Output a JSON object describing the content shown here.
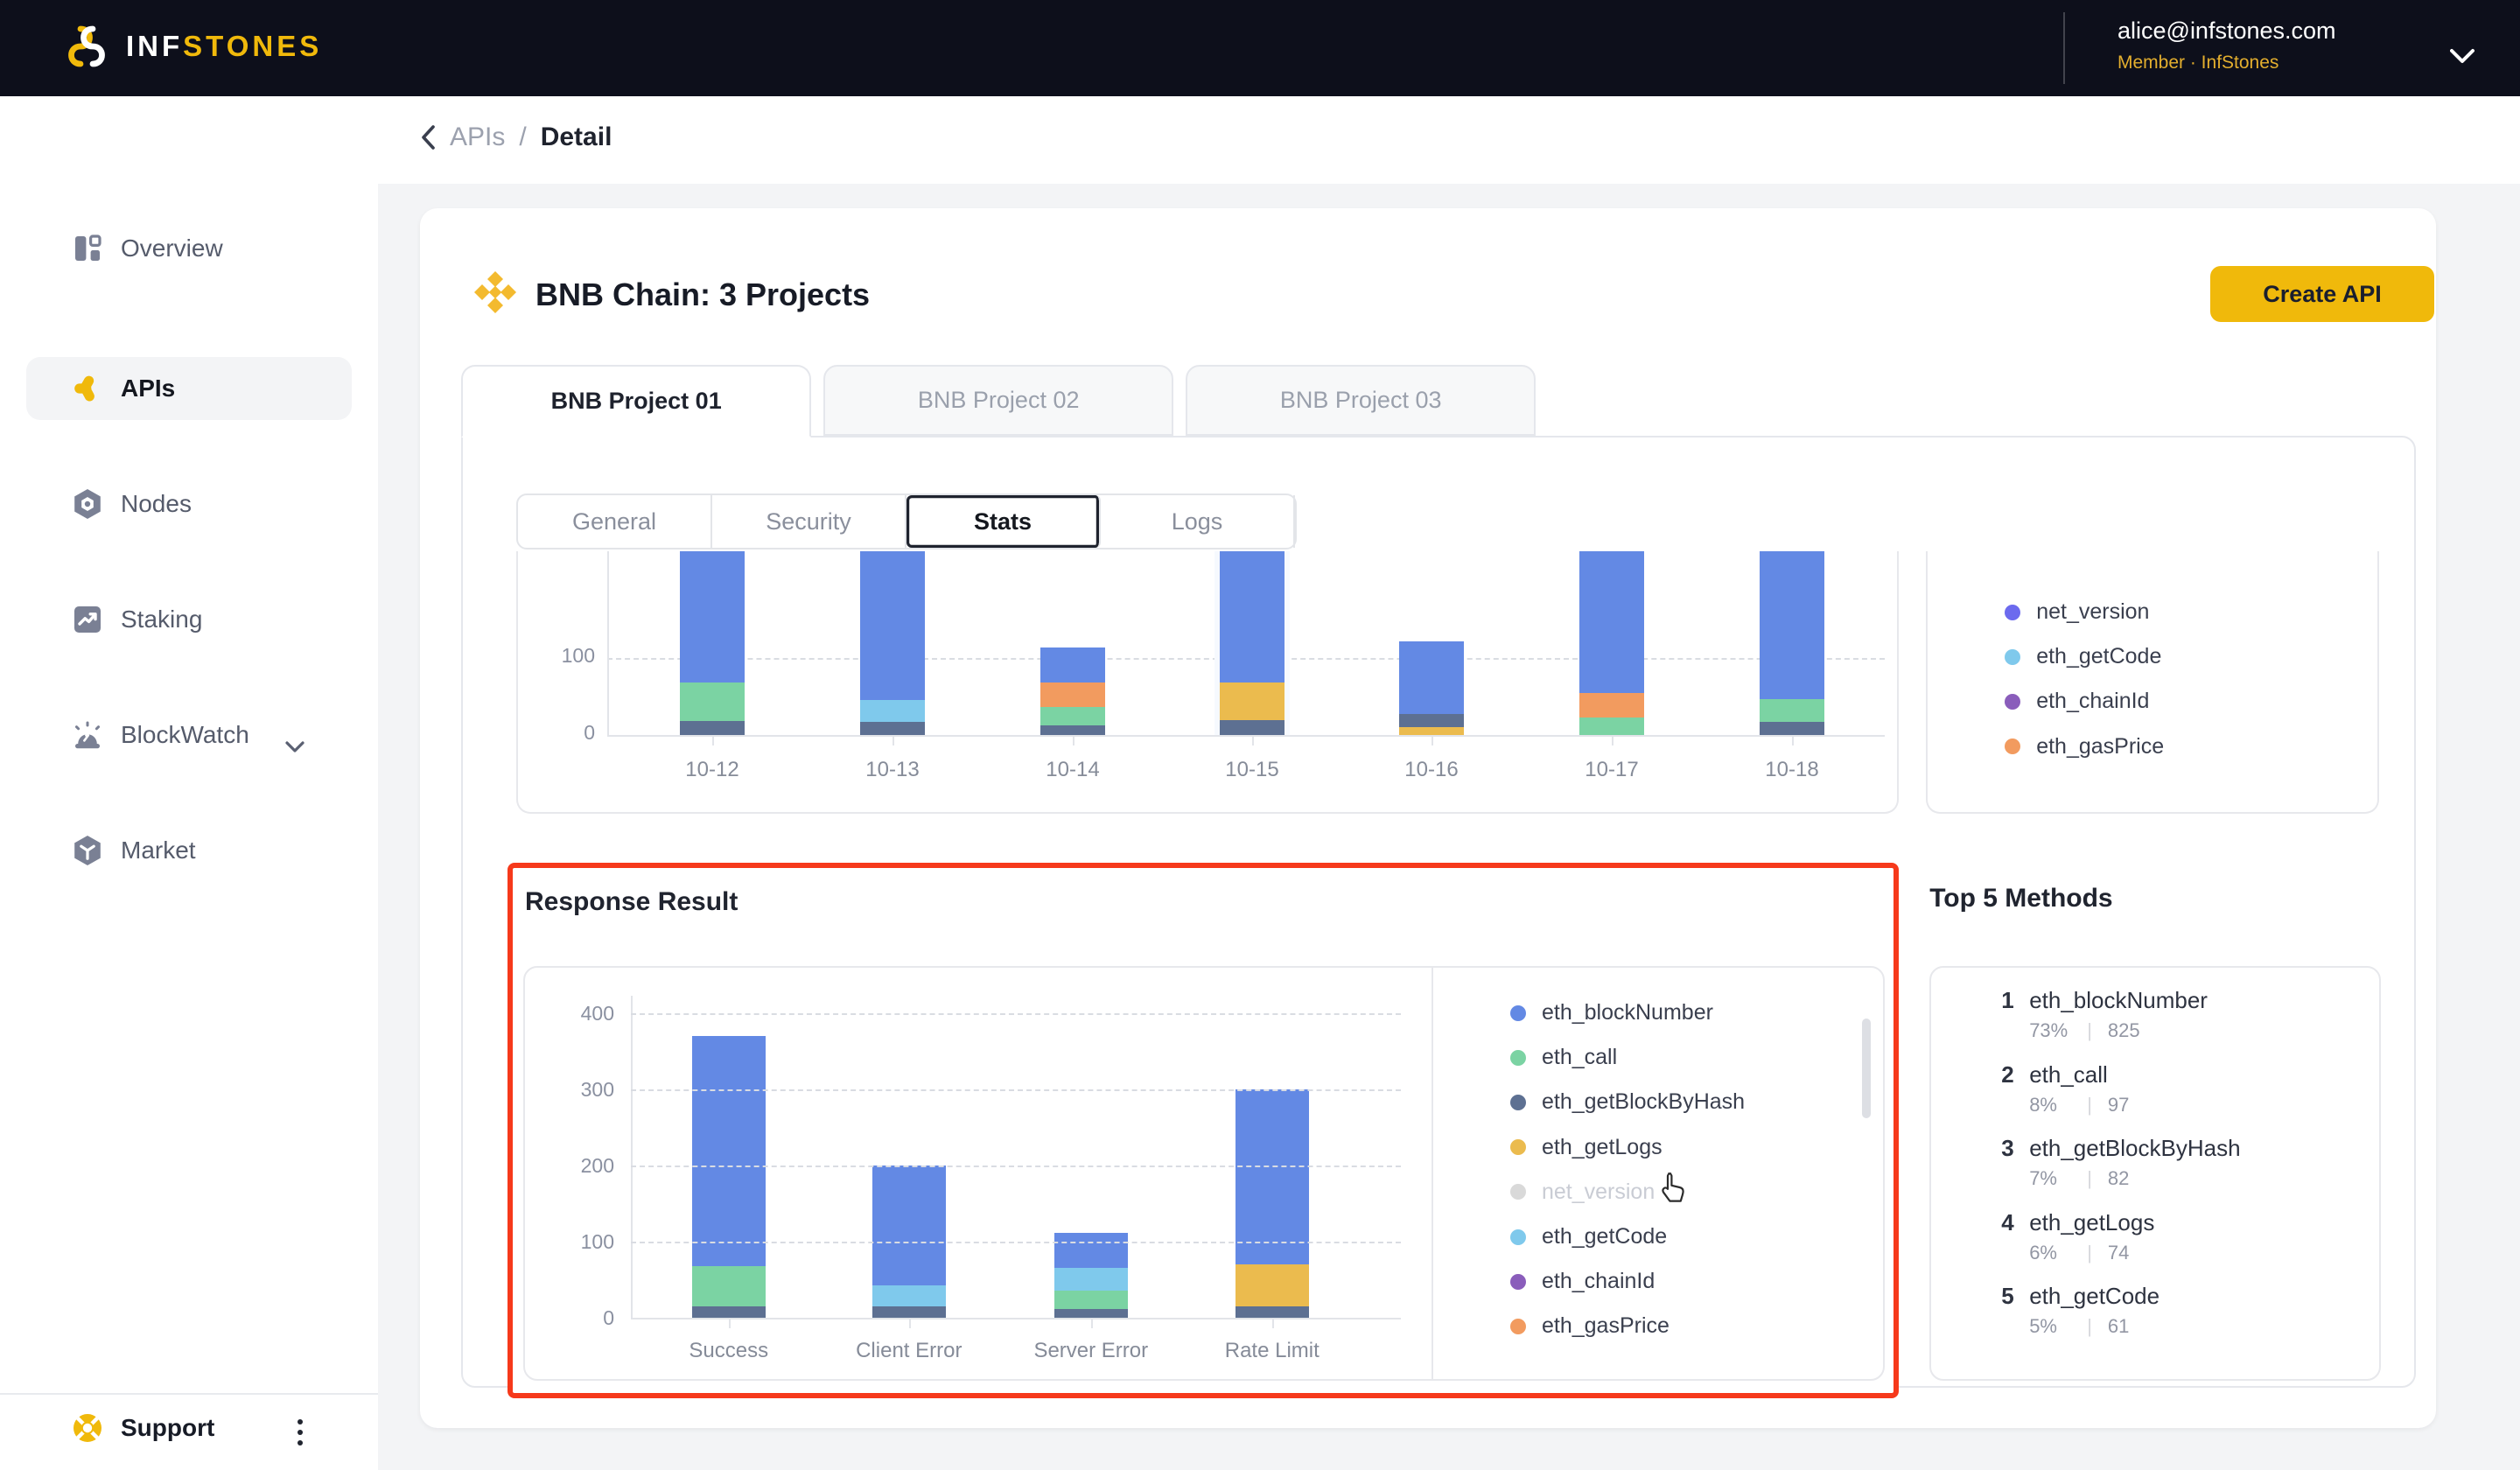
{
  "header": {
    "logo_inf": "INF",
    "logo_stones": "STONES",
    "email": "alice@infstones.com",
    "member_line": "Member · InfStones"
  },
  "breadcrumb": {
    "section": "APIs",
    "separator": "/",
    "current": "Detail"
  },
  "sidebar": {
    "items": [
      {
        "label": "Overview"
      },
      {
        "label": "APIs",
        "active": true
      },
      {
        "label": "Nodes"
      },
      {
        "label": "Staking"
      },
      {
        "label": "BlockWatch",
        "expandable": true
      },
      {
        "label": "Market"
      }
    ],
    "support_label": "Support"
  },
  "card": {
    "title": "BNB Chain: 3 Projects",
    "create_button": "Create API"
  },
  "project_tabs": [
    {
      "label": "BNB Project 01",
      "active": true
    },
    {
      "label": "BNB Project 02"
    },
    {
      "label": "BNB Project 03"
    }
  ],
  "inner_tabs": [
    {
      "label": "General"
    },
    {
      "label": "Security"
    },
    {
      "label": "Stats",
      "active": true
    },
    {
      "label": "Logs"
    }
  ],
  "sections": {
    "response_result_title": "Response Result",
    "top5_title": "Top 5 Methods"
  },
  "colors": {
    "eth_blockNumber": "#6389E4",
    "eth_call": "#7BD3A3",
    "eth_getBlockByHash": "#5D7092",
    "eth_getLogs": "#EBBB4E",
    "net_version": "#6C6AEE",
    "eth_getCode": "#7FC9EC",
    "eth_chainId": "#8A5DBB",
    "eth_gasPrice": "#F29B5F",
    "accent_yellow": "#F0B90B",
    "highlight_red": "#F6391B"
  },
  "top_legend": {
    "items": [
      {
        "label": "net_version",
        "color": "#6C6AEE"
      },
      {
        "label": "eth_getCode",
        "color": "#7FC9EC"
      },
      {
        "label": "eth_chainId",
        "color": "#8A5DBB"
      },
      {
        "label": "eth_gasPrice",
        "color": "#F29B5F"
      }
    ]
  },
  "response_legend": {
    "items": [
      {
        "label": "eth_blockNumber",
        "color": "#6389E4"
      },
      {
        "label": "eth_call",
        "color": "#7BD3A3"
      },
      {
        "label": "eth_getBlockByHash",
        "color": "#5D7092"
      },
      {
        "label": "eth_getLogs",
        "color": "#EBBB4E"
      },
      {
        "label": "net_version",
        "color": "#D9D9D9",
        "muted": true
      },
      {
        "label": "eth_getCode",
        "color": "#7FC9EC"
      },
      {
        "label": "eth_chainId",
        "color": "#8A5DBB"
      },
      {
        "label": "eth_gasPrice",
        "color": "#F29B5F"
      }
    ]
  },
  "top5": {
    "rows": [
      {
        "rank": "1",
        "name": "eth_blockNumber",
        "pct": "73%",
        "count": "825"
      },
      {
        "rank": "2",
        "name": "eth_call",
        "pct": "8%",
        "count": "97"
      },
      {
        "rank": "3",
        "name": "eth_getBlockByHash",
        "pct": "7%",
        "count": "82"
      },
      {
        "rank": "4",
        "name": "eth_getLogs",
        "pct": "6%",
        "count": "74"
      },
      {
        "rank": "5",
        "name": "eth_getCode",
        "pct": "5%",
        "count": "61"
      }
    ]
  },
  "chart_data": [
    {
      "type": "bar",
      "stacked": true,
      "clipped_top": true,
      "ylim": [
        0,
        170
      ],
      "yticks": [
        0,
        100
      ],
      "categories": [
        {
          "label": "10-12",
          "segments": [
            {
              "method": "eth_getBlockByHash",
              "value": 18
            },
            {
              "method": "eth_call",
              "value": 50
            },
            {
              "method": "eth_blockNumber",
              "value": 185
            }
          ]
        },
        {
          "label": "10-13",
          "segments": [
            {
              "method": "eth_getBlockByHash",
              "value": 17
            },
            {
              "method": "eth_getCode",
              "value": 28
            },
            {
              "method": "eth_blockNumber",
              "value": 210
            }
          ]
        },
        {
          "label": "10-14",
          "segments": [
            {
              "method": "eth_getBlockByHash",
              "value": 13
            },
            {
              "method": "eth_call",
              "value": 23
            },
            {
              "method": "eth_gasPrice",
              "value": 32
            },
            {
              "method": "eth_blockNumber",
              "value": 45
            }
          ]
        },
        {
          "label": "10-15",
          "highlight": true,
          "segments": [
            {
              "method": "eth_getBlockByHash",
              "value": 19
            },
            {
              "method": "eth_getLogs",
              "value": 49
            },
            {
              "method": "eth_blockNumber",
              "value": 190
            }
          ]
        },
        {
          "label": "10-16",
          "segments": [
            {
              "method": "eth_getLogs",
              "value": 10
            },
            {
              "method": "eth_getBlockByHash",
              "value": 17
            },
            {
              "method": "eth_blockNumber",
              "value": 94
            }
          ]
        },
        {
          "label": "10-17",
          "segments": [
            {
              "method": "eth_call",
              "value": 23
            },
            {
              "method": "eth_gasPrice",
              "value": 32
            },
            {
              "method": "eth_blockNumber",
              "value": 200
            }
          ]
        },
        {
          "label": "10-18",
          "segments": [
            {
              "method": "eth_getBlockByHash",
              "value": 17
            },
            {
              "method": "eth_call",
              "value": 29
            },
            {
              "method": "eth_blockNumber",
              "value": 205
            }
          ]
        }
      ]
    },
    {
      "type": "bar",
      "stacked": true,
      "title": "Response Result",
      "ylim": [
        0,
        400
      ],
      "yticks": [
        0,
        100,
        200,
        300,
        400
      ],
      "categories": [
        {
          "label": "Success",
          "segments": [
            {
              "method": "eth_getBlockByHash",
              "value": 15
            },
            {
              "method": "eth_call",
              "value": 53
            },
            {
              "method": "eth_blockNumber",
              "value": 302
            }
          ]
        },
        {
          "label": "Client Error",
          "segments": [
            {
              "method": "eth_getBlockByHash",
              "value": 15
            },
            {
              "method": "eth_getCode",
              "value": 28
            },
            {
              "method": "eth_blockNumber",
              "value": 157
            }
          ]
        },
        {
          "label": "Server Error",
          "segments": [
            {
              "method": "eth_getBlockByHash",
              "value": 12
            },
            {
              "method": "eth_call",
              "value": 24
            },
            {
              "method": "eth_getCode",
              "value": 30
            },
            {
              "method": "eth_blockNumber",
              "value": 46
            }
          ]
        },
        {
          "label": "Rate Limit",
          "segments": [
            {
              "method": "eth_getBlockByHash",
              "value": 15
            },
            {
              "method": "eth_getLogs",
              "value": 55
            },
            {
              "method": "eth_blockNumber",
              "value": 230
            }
          ]
        }
      ]
    }
  ]
}
